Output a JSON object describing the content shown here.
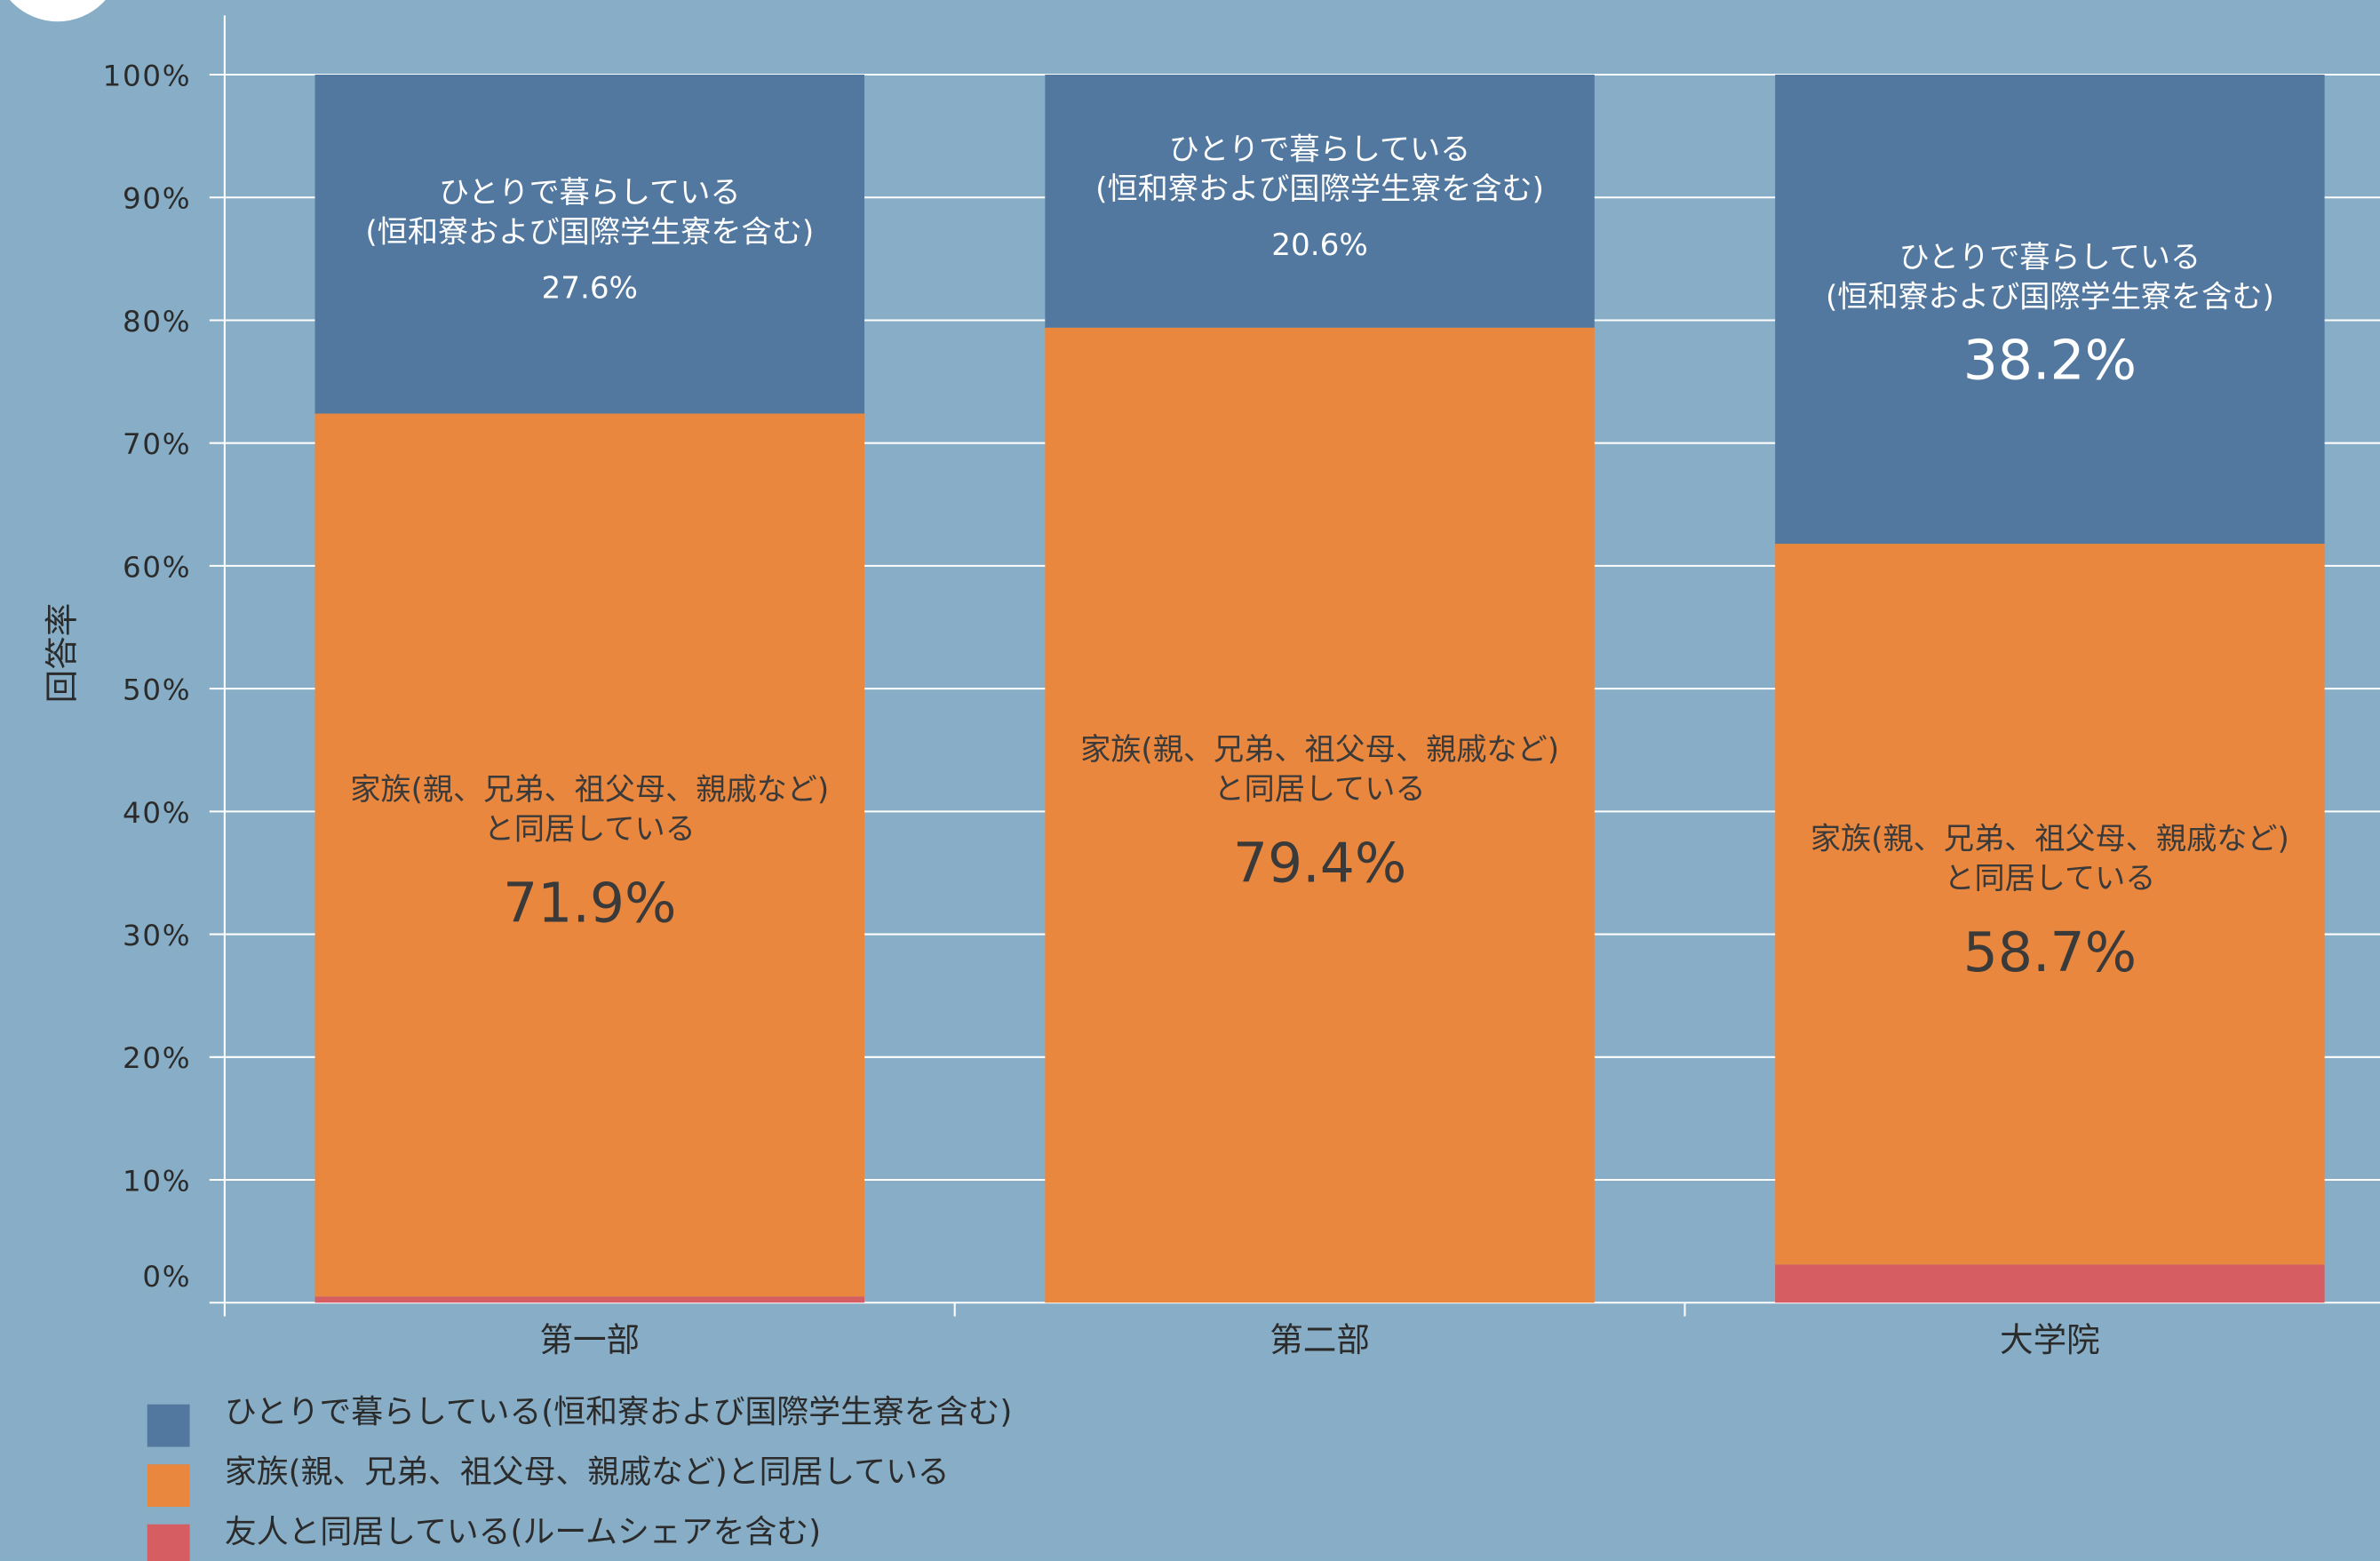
{
  "chart_data": {
    "type": "stacked_bar",
    "y_axis_label": "回答率",
    "categories": [
      "第一部",
      "第二部",
      "大学院"
    ],
    "series": [
      {
        "name": "ひとりで暮らしている(恒和寮および国際学生寮を含む)",
        "color": "#52789f",
        "label_lines": [
          "ひとりで暮らしている",
          "(恒和寮および国際学生寮を含む)"
        ],
        "values": [
          27.6,
          20.6,
          38.2
        ],
        "value_labels": [
          "27.6%",
          "20.6%",
          "38.2%"
        ]
      },
      {
        "name": "家族(親、兄弟、祖父母、親戚など)と同居している",
        "color": "#e9873e",
        "label_lines": [
          "家族(親、兄弟、祖父母、親戚など)",
          "と同居している"
        ],
        "values": [
          71.9,
          79.4,
          58.7
        ],
        "value_labels": [
          "71.9%",
          "79.4%",
          "58.7%"
        ]
      },
      {
        "name": "友人と同居している(ルームシェアを含む)",
        "color": "#d65d62",
        "values": [
          0.5,
          0,
          3.1
        ]
      }
    ],
    "ylim": [
      0,
      100
    ],
    "yticks": [
      {
        "value": 0,
        "label": "0%"
      },
      {
        "value": 10,
        "label": "10%"
      },
      {
        "value": 20,
        "label": "20%"
      },
      {
        "value": 30,
        "label": "30%"
      },
      {
        "value": 40,
        "label": "40%"
      },
      {
        "value": 50,
        "label": "50%"
      },
      {
        "value": 60,
        "label": "60%"
      },
      {
        "value": 70,
        "label": "70%"
      },
      {
        "value": 80,
        "label": "80%"
      },
      {
        "value": 90,
        "label": "90%"
      },
      {
        "value": 100,
        "label": "100%"
      }
    ],
    "grid": true
  }
}
